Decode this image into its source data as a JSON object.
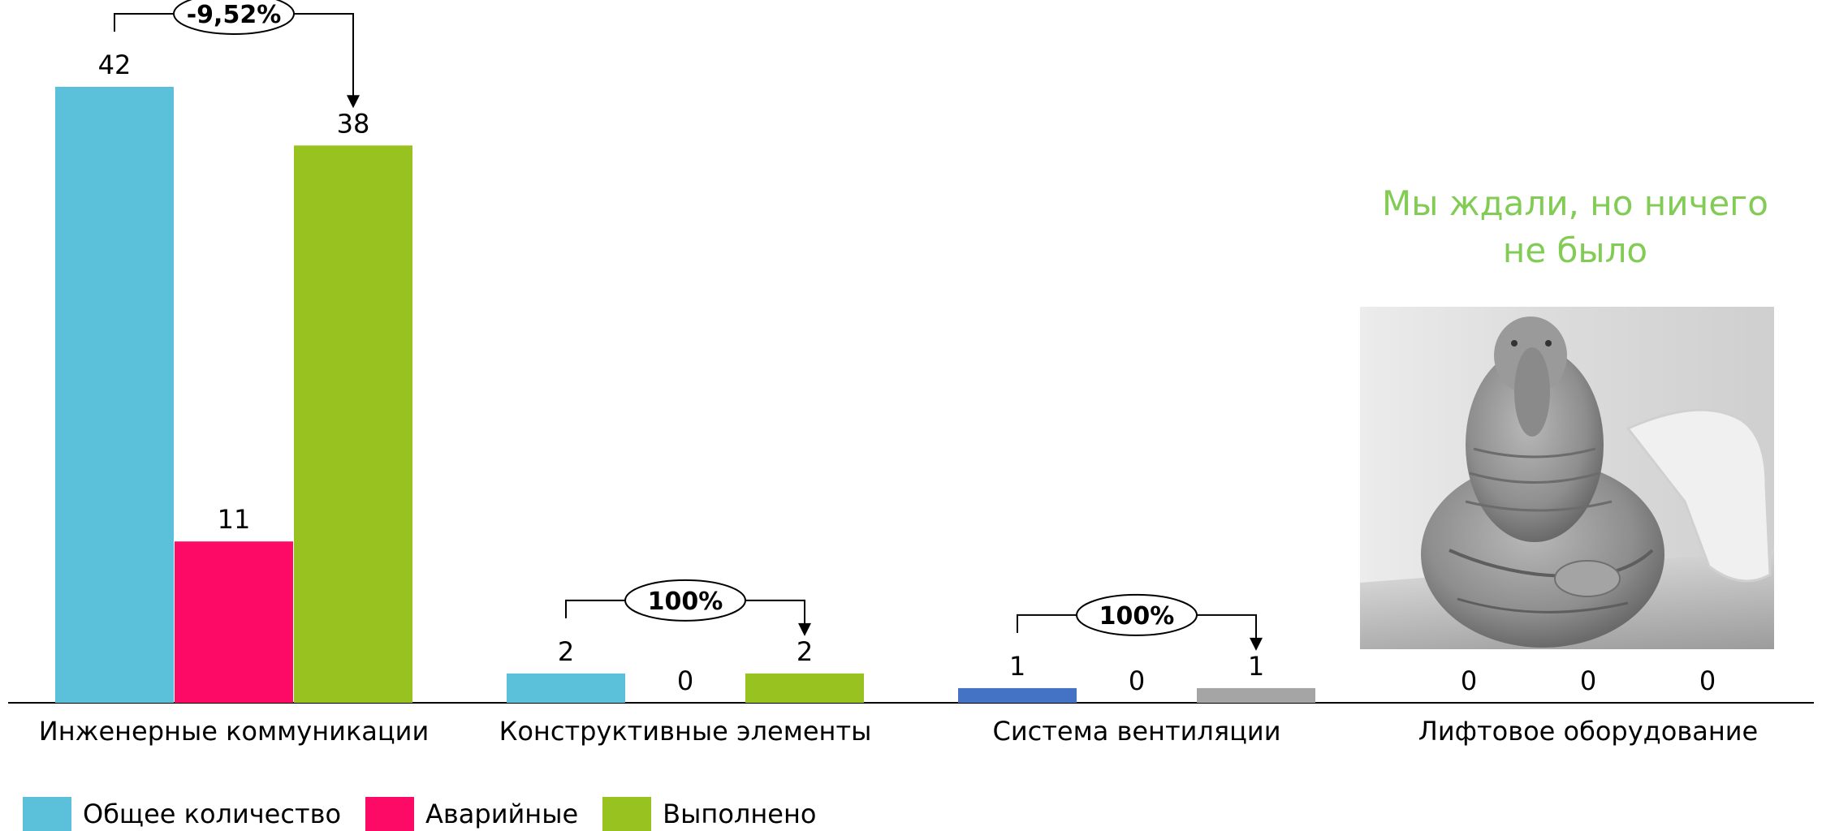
{
  "chart_data": {
    "type": "bar",
    "categories": [
      "Инженерные коммуникации",
      "Конструктивные элементы",
      "Система вентиляции",
      "Лифтовое оборудование"
    ],
    "series": [
      {
        "name": "Общее количество",
        "values": [
          42,
          2,
          1,
          0
        ]
      },
      {
        "name": "Аварийные",
        "values": [
          11,
          0,
          0,
          0
        ]
      },
      {
        "name": "Выполнено",
        "values": [
          38,
          2,
          1,
          0
        ]
      }
    ],
    "data_labels": [
      [
        "42",
        "11",
        "38"
      ],
      [
        "2",
        "0",
        "2"
      ],
      [
        "1",
        "0",
        "1"
      ],
      [
        "0",
        "0",
        "0"
      ]
    ],
    "bar_colors": [
      [
        "#5bc0da",
        "#fc0a66",
        "#97c21f"
      ],
      [
        "#5bc0da",
        "#fc0a66",
        "#97c21f"
      ],
      [
        "#4472c4",
        "#fc0a66",
        "#a5a5a5"
      ],
      [
        "#5bc0da",
        "#fc0a66",
        "#97c21f"
      ]
    ],
    "change_annotations": [
      {
        "category": "Инженерные коммуникации",
        "text": "-9,52%"
      },
      {
        "category": "Конструктивные элементы",
        "text": "100%"
      },
      {
        "category": "Система вентиляции",
        "text": "100%"
      }
    ],
    "legend_position": "bottom-left",
    "ylim": [
      0,
      42
    ],
    "grid": false
  },
  "annotation_text": {
    "line1": "Мы ждали, но ничего",
    "line2": "не было",
    "color": "#82cc55"
  },
  "legend": {
    "items": [
      {
        "label": "Общее количество",
        "color": "#5bc0da"
      },
      {
        "label": "Аварийные",
        "color": "#fc0a66"
      },
      {
        "label": "Выполнено",
        "color": "#97c21f"
      }
    ]
  },
  "photo": {
    "icon": "waiting-creature-photo"
  }
}
